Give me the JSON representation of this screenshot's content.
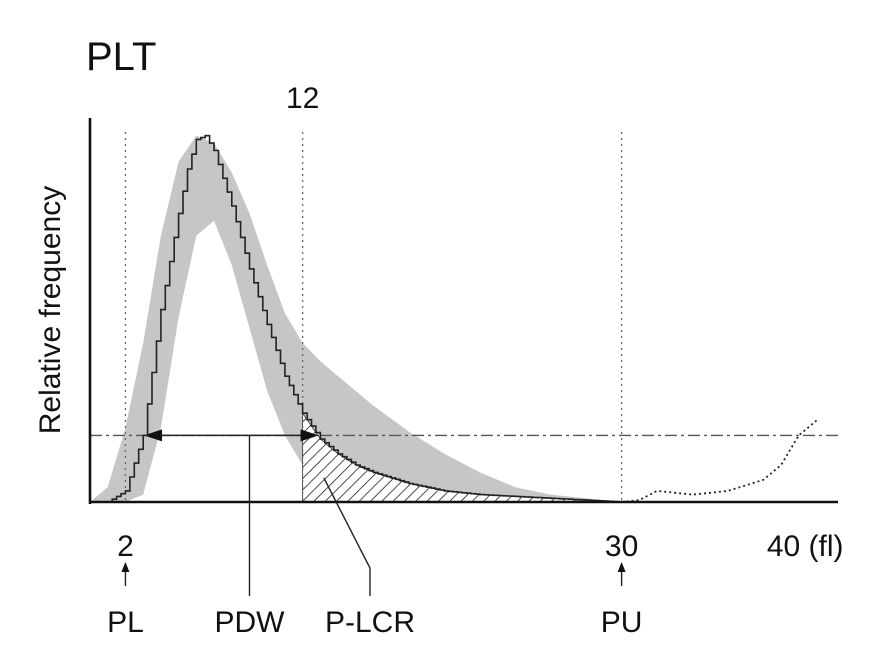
{
  "chart_data": {
    "type": "line",
    "title": "PLT",
    "ylabel": "Relative frequency",
    "xlabel": "",
    "x_unit": "(fl)",
    "xlim": [
      0,
      42
    ],
    "ylim": [
      0,
      1
    ],
    "grid": false,
    "legend": "none",
    "x_ticks": [
      {
        "value": 2,
        "label": "2",
        "position": "bottom"
      },
      {
        "value": 12,
        "label": "12",
        "position": "top"
      },
      {
        "value": 30,
        "label": "30",
        "position": "bottom"
      },
      {
        "value": 40,
        "label": "40 (fl)",
        "position": "bottom"
      }
    ],
    "reference_x": [
      2,
      12,
      30
    ],
    "threshold_y": 0.18,
    "pdw_x": 9,
    "markers": {
      "pl": {
        "label": "PL",
        "x": 2
      },
      "pu": {
        "label": "PU",
        "x": 30
      },
      "pdw": {
        "label": "PDW",
        "x": 9
      },
      "plcr": {
        "label": "P-LCR",
        "x": 15
      }
    },
    "normal_range": {
      "x": [
        0,
        1,
        2,
        3,
        4,
        5,
        6,
        7,
        8,
        9,
        10,
        11,
        12,
        13,
        14,
        15,
        16,
        18,
        20,
        22,
        24,
        26,
        28,
        30
      ],
      "upper": [
        0,
        0.04,
        0.2,
        0.43,
        0.72,
        0.92,
        0.99,
        0.97,
        0.89,
        0.78,
        0.64,
        0.51,
        0.43,
        0.38,
        0.34,
        0.3,
        0.26,
        0.19,
        0.13,
        0.08,
        0.04,
        0.02,
        0.01,
        0
      ],
      "lower": [
        0,
        0,
        0,
        0.02,
        0.2,
        0.5,
        0.72,
        0.76,
        0.64,
        0.47,
        0.3,
        0.18,
        0.1,
        0.07,
        0.05,
        0.03,
        0.02,
        0.01,
        0.005,
        0,
        0,
        0,
        0,
        0
      ]
    },
    "series": [
      {
        "x": [
          1,
          2,
          3,
          4,
          5,
          5.5,
          6,
          6.5,
          7,
          8,
          9,
          10,
          11,
          12,
          13,
          14,
          15,
          16,
          18,
          20,
          22,
          24,
          26,
          28,
          30
        ],
        "values": [
          0,
          0.03,
          0.18,
          0.52,
          0.78,
          0.9,
          0.98,
          0.99,
          0.95,
          0.8,
          0.63,
          0.48,
          0.34,
          0.24,
          0.17,
          0.13,
          0.1,
          0.08,
          0.05,
          0.03,
          0.02,
          0.015,
          0.01,
          0.005,
          0
        ]
      },
      {
        "style": "dotted",
        "x": [
          30,
          31,
          32,
          33,
          34,
          35,
          36,
          37,
          38,
          39,
          40,
          41
        ],
        "values": [
          0,
          0.005,
          0.03,
          0.025,
          0.02,
          0.025,
          0.03,
          0.045,
          0.06,
          0.1,
          0.18,
          0.22
        ]
      }
    ]
  }
}
